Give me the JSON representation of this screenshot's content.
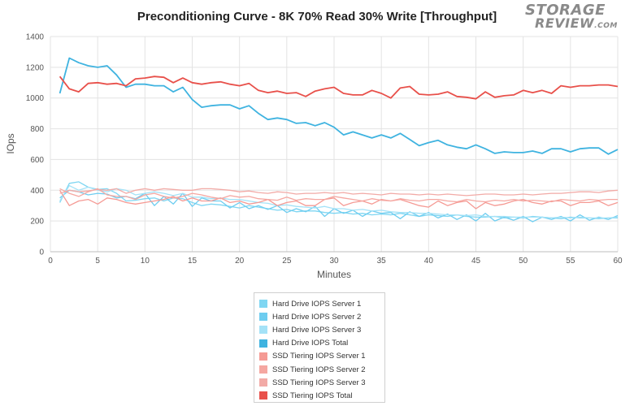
{
  "logo": {
    "line1": "STORAGE",
    "line2": "REVIEW",
    "suffix": ".COM"
  },
  "chart_data": {
    "type": "line",
    "title": "Preconditioning Curve - 8K 70% Read 30% Write [Throughput]",
    "xlabel": "Minutes",
    "ylabel": "IOps",
    "xlim": [
      0,
      60
    ],
    "ylim": [
      0,
      1400
    ],
    "xticks": [
      0,
      5,
      10,
      15,
      20,
      25,
      30,
      35,
      40,
      45,
      50,
      55,
      60
    ],
    "yticks": [
      0,
      200,
      400,
      600,
      800,
      1000,
      1200,
      1400
    ],
    "grid": true,
    "legend_position": "bottom",
    "x": [
      1,
      2,
      3,
      4,
      5,
      6,
      7,
      8,
      9,
      10,
      11,
      12,
      13,
      14,
      15,
      16,
      17,
      18,
      19,
      20,
      21,
      22,
      23,
      24,
      25,
      26,
      27,
      28,
      29,
      30,
      31,
      32,
      33,
      34,
      35,
      36,
      37,
      38,
      39,
      40,
      41,
      42,
      43,
      44,
      45,
      46,
      47,
      48,
      49,
      50,
      51,
      52,
      53,
      54,
      55,
      56,
      57,
      58,
      59,
      60
    ],
    "series": [
      {
        "name": "Hard Drive IOPS Server 1",
        "color": "#7fd6f2",
        "width": 1.3,
        "values": [
          320,
          445,
          455,
          420,
          405,
          410,
          380,
          330,
          335,
          345,
          350,
          330,
          350,
          345,
          320,
          300,
          310,
          305,
          295,
          285,
          300,
          290,
          280,
          270,
          275,
          260,
          265,
          265,
          255,
          250,
          255,
          245,
          250,
          240,
          245,
          240,
          250,
          240,
          230,
          240,
          235,
          230,
          240,
          230,
          225,
          225,
          230,
          220,
          225,
          220,
          230,
          225,
          220,
          215,
          225,
          220,
          220,
          215,
          220,
          220
        ]
      },
      {
        "name": "Hard Drive IOPS Server 2",
        "color": "#6ecdf0",
        "width": 1.3,
        "values": [
          350,
          400,
          390,
          370,
          380,
          375,
          350,
          360,
          345,
          380,
          300,
          360,
          310,
          380,
          295,
          350,
          330,
          330,
          285,
          320,
          280,
          300,
          275,
          300,
          255,
          280,
          260,
          295,
          230,
          280,
          250,
          270,
          230,
          265,
          250,
          255,
          215,
          260,
          230,
          255,
          220,
          245,
          210,
          240,
          200,
          250,
          200,
          225,
          205,
          230,
          195,
          225,
          210,
          230,
          200,
          240,
          205,
          225,
          210,
          235
        ]
      },
      {
        "name": "Hard Drive IOPS Server 3",
        "color": "#a4e2f7",
        "width": 1.3,
        "values": [
          330,
          430,
          400,
          420,
          400,
          390,
          410,
          400,
          370,
          380,
          390,
          380,
          365,
          380,
          355,
          355,
          345,
          350,
          340,
          340,
          330,
          320,
          315,
          300,
          305,
          295,
          290,
          285,
          295,
          280,
          280,
          270,
          275,
          265,
          270,
          260,
          255,
          255,
          250,
          250,
          245,
          240,
          240,
          235,
          240,
          230,
          230,
          230,
          225,
          225,
          225,
          225,
          220,
          225,
          220,
          225,
          220,
          220,
          220,
          225
        ]
      },
      {
        "name": "Hard Drive IOPS Total",
        "color": "#3fb3e0",
        "width": 1.8,
        "values": [
          1030,
          1260,
          1230,
          1210,
          1200,
          1210,
          1150,
          1070,
          1090,
          1090,
          1080,
          1080,
          1040,
          1070,
          990,
          940,
          950,
          955,
          955,
          930,
          950,
          900,
          860,
          870,
          860,
          835,
          840,
          820,
          840,
          810,
          760,
          780,
          760,
          740,
          760,
          740,
          770,
          730,
          690,
          710,
          725,
          695,
          680,
          670,
          695,
          670,
          640,
          650,
          645,
          645,
          655,
          640,
          670,
          670,
          650,
          670,
          675,
          675,
          635,
          665
        ]
      },
      {
        "name": "SSD Tiering IOPS Server 1",
        "color": "#f59a94",
        "width": 1.3,
        "values": [
          400,
          300,
          330,
          340,
          310,
          350,
          340,
          320,
          310,
          320,
          330,
          340,
          360,
          330,
          350,
          330,
          330,
          350,
          320,
          330,
          310,
          320,
          340,
          300,
          320,
          330,
          300,
          300,
          340,
          350,
          300,
          320,
          330,
          310,
          340,
          330,
          340,
          320,
          300,
          290,
          330,
          300,
          320,
          330,
          280,
          320,
          300,
          310,
          330,
          340,
          320,
          310,
          330,
          330,
          300,
          320,
          320,
          330,
          300,
          320
        ]
      },
      {
        "name": "SSD Tiering IOPS Server 2",
        "color": "#f5a7a1",
        "width": 1.3,
        "values": [
          410,
          380,
          360,
          390,
          410,
          370,
          360,
          360,
          340,
          370,
          380,
          360,
          350,
          360,
          380,
          370,
          355,
          345,
          365,
          355,
          360,
          345,
          340,
          335,
          355,
          335,
          345,
          340,
          340,
          360,
          350,
          340,
          330,
          345,
          335,
          330,
          345,
          335,
          330,
          340,
          340,
          330,
          325,
          340,
          330,
          325,
          335,
          330,
          340,
          330,
          335,
          330,
          325,
          340,
          335,
          330,
          340,
          335,
          340,
          340
        ]
      },
      {
        "name": "SSD Tiering IOPS Server 3",
        "color": "#f2aaa6",
        "width": 1.3,
        "values": [
          380,
          400,
          390,
          395,
          405,
          400,
          410,
          380,
          400,
          410,
          400,
          410,
          405,
          400,
          400,
          410,
          410,
          405,
          400,
          390,
          395,
          385,
          380,
          390,
          385,
          375,
          380,
          380,
          385,
          380,
          385,
          375,
          380,
          375,
          370,
          380,
          375,
          375,
          370,
          375,
          370,
          375,
          370,
          365,
          370,
          375,
          375,
          370,
          370,
          375,
          370,
          375,
          380,
          380,
          385,
          390,
          390,
          385,
          395,
          400
        ]
      },
      {
        "name": "SSD Tiering IOPS Total",
        "color": "#e8504a",
        "width": 1.8,
        "values": [
          1140,
          1060,
          1040,
          1095,
          1100,
          1090,
          1095,
          1080,
          1125,
          1130,
          1140,
          1135,
          1100,
          1130,
          1100,
          1090,
          1100,
          1105,
          1090,
          1080,
          1095,
          1050,
          1035,
          1045,
          1030,
          1035,
          1010,
          1045,
          1060,
          1070,
          1030,
          1020,
          1020,
          1050,
          1030,
          1000,
          1065,
          1075,
          1025,
          1020,
          1025,
          1040,
          1010,
          1005,
          995,
          1040,
          1005,
          1015,
          1020,
          1050,
          1035,
          1050,
          1030,
          1080,
          1070,
          1080,
          1080,
          1085,
          1085,
          1075
        ]
      }
    ]
  }
}
